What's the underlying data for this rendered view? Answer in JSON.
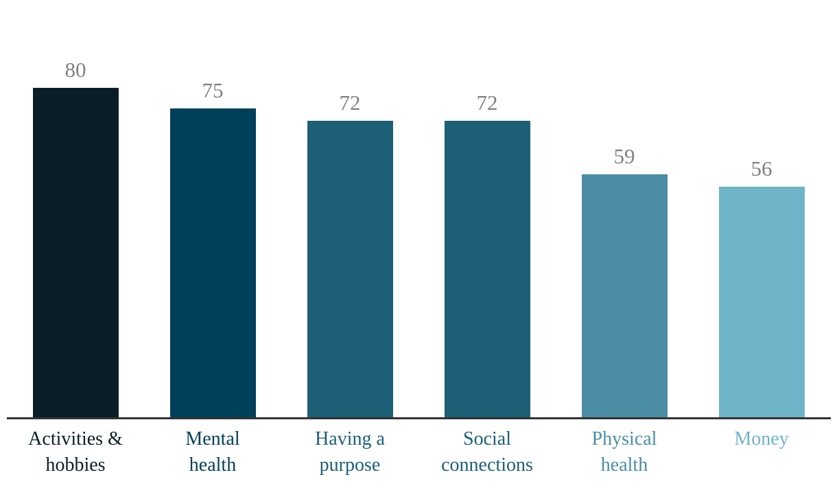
{
  "chart_data": {
    "type": "bar",
    "title": "",
    "xlabel": "",
    "ylabel": "",
    "categories": [
      "Activities & hobbies",
      "Mental health",
      "Having a purpose",
      "Social connections",
      "Physical health",
      "Money"
    ],
    "category_label_lines": [
      [
        "Activities &",
        "hobbies"
      ],
      [
        "Mental",
        "health"
      ],
      [
        "Having a",
        "purpose"
      ],
      [
        "Social",
        "connections"
      ],
      [
        "Physical",
        "health"
      ],
      [
        "Money"
      ]
    ],
    "values": [
      80,
      75,
      72,
      72,
      59,
      56
    ],
    "value_labels": [
      "80",
      "75",
      "72",
      "72",
      "59",
      "56"
    ],
    "bar_colors": [
      "#0a1e28",
      "#01405a",
      "#1d5f76",
      "#1d5f76",
      "#4a8da5",
      "#6db4c9"
    ],
    "category_label_colors": [
      "#0a1e28",
      "#01405a",
      "#1d5f76",
      "#1d5f76",
      "#4a8da5",
      "#6db4c9"
    ],
    "value_label_color": "#808080",
    "axis_line_color": "#333333",
    "background_color": "#ffffff",
    "ylim": [
      0,
      100
    ],
    "grid": false,
    "legend": false,
    "value_labels_position": "above-bars",
    "category_labels_position": "below-axis"
  }
}
